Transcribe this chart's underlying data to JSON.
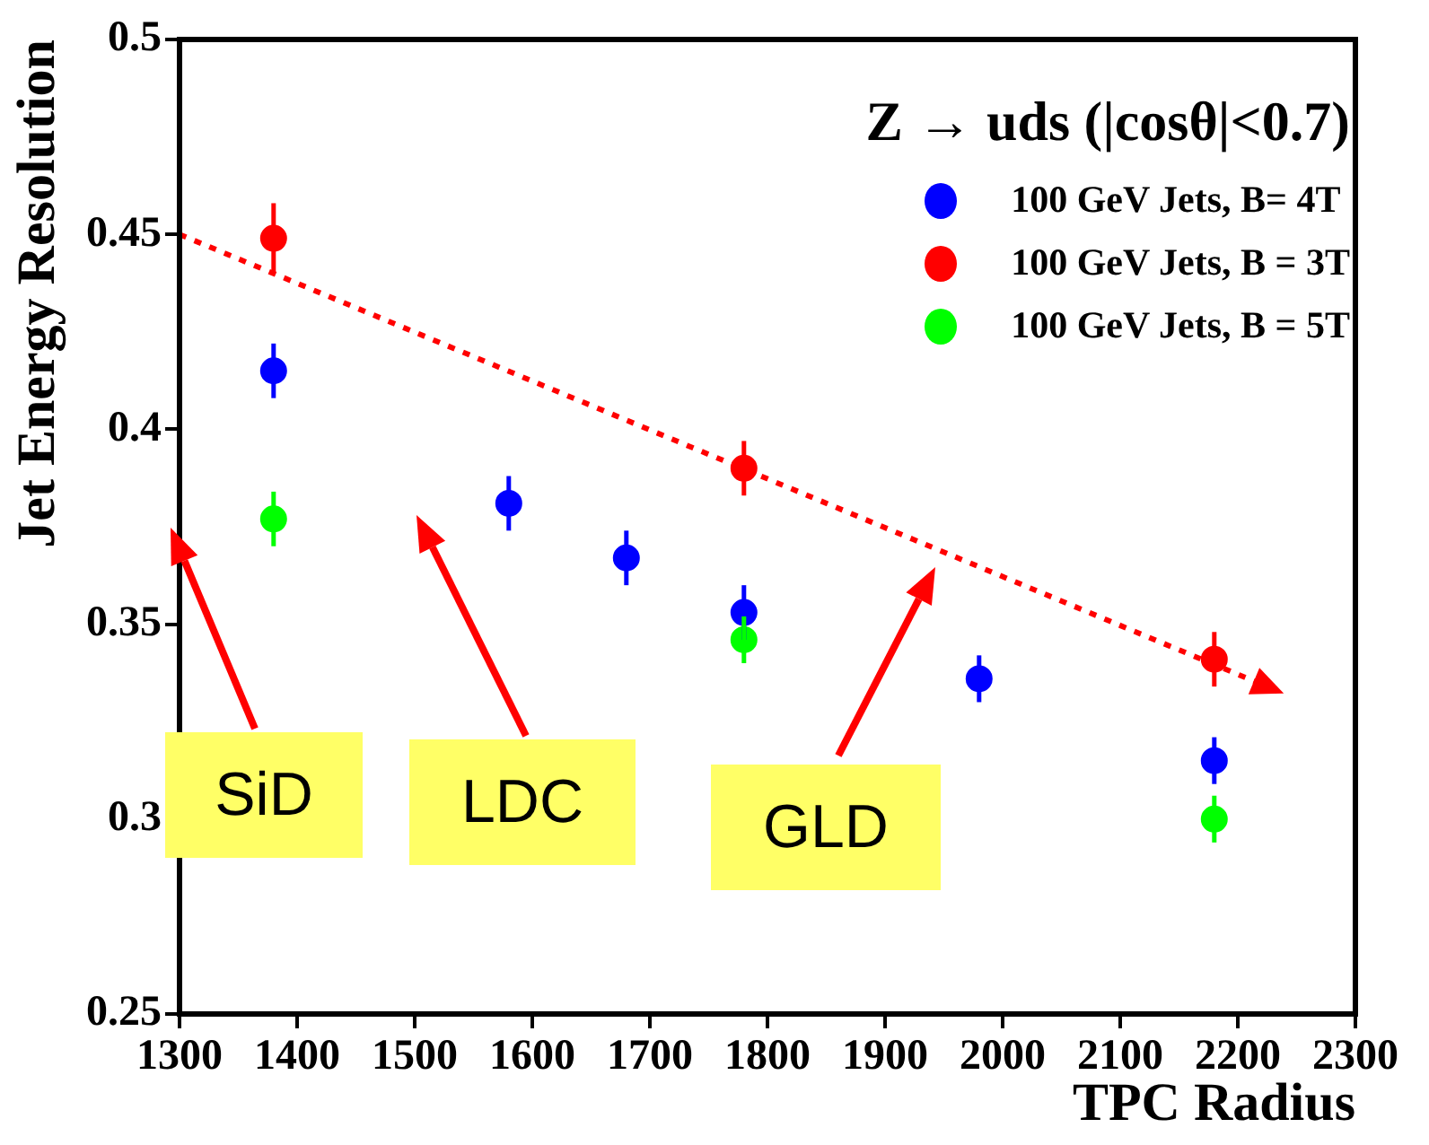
{
  "chart_data": {
    "type": "scatter",
    "xlabel": "TPC Radius",
    "ylabel": "Jet Energy Resolution",
    "legend_title": "Z → uds (|cosθ|<0.7)",
    "xlim": [
      1300,
      2300
    ],
    "xticks": [
      1300,
      1400,
      1500,
      1600,
      1700,
      1800,
      1900,
      2000,
      2100,
      2200,
      2300
    ],
    "ylim": [
      0.25,
      0.5
    ],
    "yticks": [
      0.25,
      0.3,
      0.35,
      0.4,
      0.45,
      0.5
    ],
    "series": [
      {
        "name": "100 GeV Jets, B= 4T",
        "color": "#0000ff",
        "marker": "circle",
        "x": [
          1380,
          1580,
          1680,
          1780,
          1980,
          2180
        ],
        "values": [
          0.415,
          0.381,
          0.367,
          0.353,
          0.336,
          0.315
        ],
        "errors": [
          0.007,
          0.007,
          0.007,
          0.007,
          0.006,
          0.006
        ]
      },
      {
        "name": "100 GeV Jets, B = 3T",
        "color": "#ff0000",
        "marker": "circle",
        "x": [
          1380,
          1780,
          2180
        ],
        "values": [
          0.449,
          0.39,
          0.341
        ],
        "errors": [
          0.009,
          0.007,
          0.007
        ]
      },
      {
        "name": "100 GeV Jets, B = 5T",
        "color": "#00ff00",
        "marker": "circle",
        "x": [
          1380,
          1780,
          2180
        ],
        "values": [
          0.377,
          0.346,
          0.3
        ],
        "errors": [
          0.007,
          0.006,
          0.006
        ]
      },
      {
        "type": "line",
        "color": "#ff0000",
        "line_style": "dotted",
        "x": [
          1300,
          2225
        ],
        "values": [
          0.45,
          0.334
        ]
      }
    ],
    "annotations": [
      "SiD",
      "LDC",
      "GLD"
    ],
    "grid": false,
    "legend": "top right"
  }
}
